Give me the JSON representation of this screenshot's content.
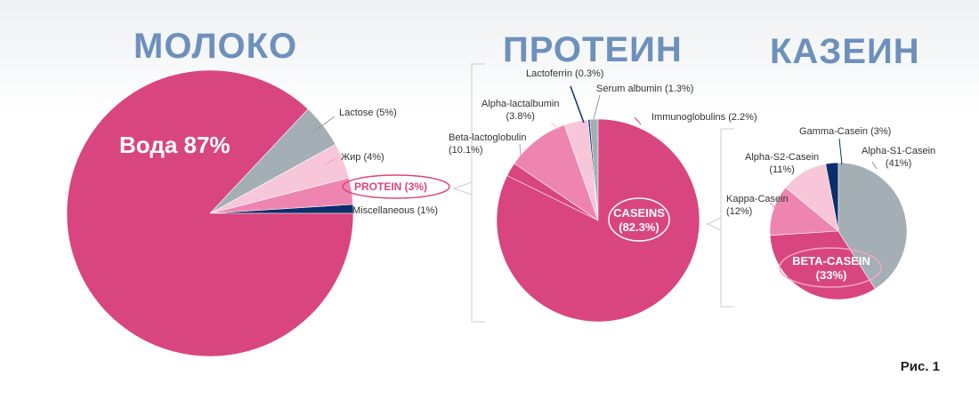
{
  "titles": {
    "milk": "МОЛОКО",
    "protein": "ПРОТЕИН",
    "casein": "КАЗЕИН"
  },
  "figure_label": "Рис. 1",
  "colors": {
    "magenta": "#d9457f",
    "gray": "#a3aeb5",
    "light_pink": "#f7c6d8",
    "pink": "#ee85b0",
    "navy": "#0c2f6b",
    "title": "#6d90bd"
  },
  "chart_data": [
    {
      "type": "pie",
      "title": "МОЛОКО",
      "slices": [
        {
          "label": "Miscellaneous (1%)",
          "value": 1,
          "color": "#0c2f6b"
        },
        {
          "label": "PROTEIN (3%)",
          "value": 3,
          "color": "#ee85b0"
        },
        {
          "label": "Жир (4%)",
          "value": 4,
          "color": "#f7c6d8"
        },
        {
          "label": "Lactose (5%)",
          "value": 5,
          "color": "#a3aeb5"
        },
        {
          "label": "Вода 87%",
          "value": 87,
          "color": "#d9457f"
        }
      ]
    },
    {
      "type": "pie",
      "title": "ПРОТЕИН",
      "slices": [
        {
          "label": "Serum albumin (1.3%)",
          "value": 1.3,
          "color": "#a3aeb5"
        },
        {
          "label": "Lactoferrin (0.3%)",
          "value": 0.3,
          "color": "#0c2f6b"
        },
        {
          "label": "Alpha-lactalbumin (3.8%)",
          "value": 3.8,
          "color": "#f7c6d8"
        },
        {
          "label": "Beta-lactoglobulin (10.1%)",
          "value": 10.1,
          "color": "#ee85b0"
        },
        {
          "label": "Immunoglobulins (2.2%)",
          "value": 2.2,
          "color": "#d9457f"
        },
        {
          "label": "CASEINS (82.3%)",
          "value": 82.3,
          "color": "#d9457f"
        }
      ]
    },
    {
      "type": "pie",
      "title": "КАЗЕИН",
      "slices": [
        {
          "label": "Gamma-Casein (3%)",
          "value": 3,
          "color": "#0c2f6b"
        },
        {
          "label": "Alpha-S2-Casein (11%)",
          "value": 11,
          "color": "#f7c6d8"
        },
        {
          "label": "Kappa-Casein (12%)",
          "value": 12,
          "color": "#ee85b0"
        },
        {
          "label": "BETA-CASEIN (33%)",
          "value": 33,
          "color": "#d9457f"
        },
        {
          "label": "Alpha-S1-Casein (41%)",
          "value": 41,
          "color": "#a3aeb5"
        }
      ]
    }
  ],
  "labels": {
    "water": "Вода 87%",
    "lactose": "Lactose (5%)",
    "fat": "Жир (4%)",
    "protein": "PROTEIN (3%)",
    "misc": "Miscellaneous (1%)",
    "lactoferrin": "Lactoferrin (0.3%)",
    "serum_albumin": "Serum albumin (1.3%)",
    "alpha_lact_1": "Alpha-lactalbumin",
    "alpha_lact_2": "(3.8%)",
    "immuno": "Immunoglobulins (2.2%)",
    "beta_lacto_1": "Beta-lactoglobulin",
    "beta_lacto_2": "(10.1%)",
    "caseins_1": "CASEINS",
    "caseins_2": "(82.3%)",
    "gamma": "Gamma-Casein (3%)",
    "as1_1": "Alpha-S1-Casein",
    "as1_2": "(41%)",
    "as2_1": "Alpha-S2-Casein",
    "as2_2": "(11%)",
    "kappa_1": "Kappa-Casein",
    "kappa_2": "(12%)",
    "beta_1": "BETA-CASEIN",
    "beta_2": "(33%)"
  }
}
